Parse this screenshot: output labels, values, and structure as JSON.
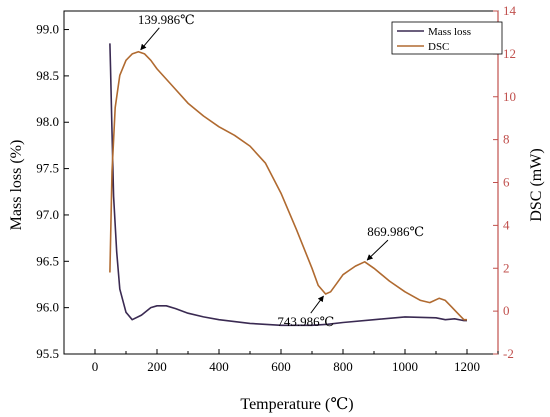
{
  "chart_data": {
    "type": "line",
    "xlabel": "Temperature (℃)",
    "ylabel_left": "Mass loss (%)",
    "ylabel_right": "DSC (mW)",
    "xlim": [
      -100,
      1300
    ],
    "ylim_left": [
      95.5,
      99.2
    ],
    "ylim_right": [
      -2,
      14
    ],
    "x_ticks": [
      0,
      200,
      400,
      600,
      800,
      1000,
      1200
    ],
    "y_left_ticks": [
      95.5,
      96.0,
      96.5,
      97.0,
      97.5,
      98.0,
      98.5,
      99.0
    ],
    "y_right_ticks": [
      -2,
      0,
      2,
      4,
      6,
      8,
      10,
      12,
      14
    ],
    "legend_position": "top-right",
    "colors": {
      "mass": "#3a2a52",
      "dsc": "#b06a30",
      "right_axis": "#c0504d",
      "axis": "#000000"
    },
    "series": [
      {
        "name": "Mass loss",
        "axis": "left",
        "x": [
          48,
          50,
          55,
          60,
          70,
          80,
          100,
          120,
          150,
          180,
          200,
          230,
          260,
          300,
          350,
          400,
          450,
          500,
          600,
          700,
          750,
          800,
          900,
          1000,
          1100,
          1130,
          1160,
          1190,
          1200
        ],
        "values": [
          98.85,
          98.6,
          97.9,
          97.2,
          96.6,
          96.2,
          95.95,
          95.87,
          95.92,
          96.0,
          96.02,
          96.02,
          95.99,
          95.94,
          95.9,
          95.87,
          95.85,
          95.83,
          95.81,
          95.81,
          95.82,
          95.84,
          95.87,
          95.9,
          95.89,
          95.87,
          95.88,
          95.86,
          95.86
        ]
      },
      {
        "name": "DSC",
        "axis": "right",
        "x": [
          48,
          55,
          65,
          80,
          100,
          120,
          140,
          160,
          180,
          200,
          250,
          300,
          350,
          400,
          450,
          500,
          550,
          600,
          650,
          700,
          720,
          743.986,
          760,
          780,
          800,
          820,
          840,
          869.986,
          900,
          950,
          1000,
          1050,
          1080,
          1110,
          1130,
          1150,
          1170,
          1190,
          1200
        ],
        "values": [
          1.8,
          6.5,
          9.5,
          11.0,
          11.7,
          12.0,
          12.1,
          12.0,
          11.7,
          11.3,
          10.5,
          9.7,
          9.1,
          8.6,
          8.2,
          7.7,
          6.9,
          5.5,
          3.8,
          2.0,
          1.2,
          0.8,
          0.9,
          1.3,
          1.7,
          1.9,
          2.1,
          2.3,
          2.0,
          1.4,
          0.9,
          0.5,
          0.4,
          0.6,
          0.5,
          0.2,
          -0.1,
          -0.4,
          -0.4
        ]
      }
    ],
    "annotations": [
      {
        "text": "139.986℃",
        "x": 139.986,
        "y": 12.1,
        "axis": "right",
        "label_x": 230,
        "label_y": 13.4,
        "anchor": "middle"
      },
      {
        "text": "743.986℃",
        "x": 743.986,
        "y": 0.8,
        "axis": "right",
        "label_x": 680,
        "label_y": -0.7,
        "anchor": "middle"
      },
      {
        "text": "869.986℃",
        "x": 869.986,
        "y": 2.3,
        "axis": "right",
        "label_x": 970,
        "label_y": 3.5,
        "anchor": "middle"
      }
    ]
  }
}
